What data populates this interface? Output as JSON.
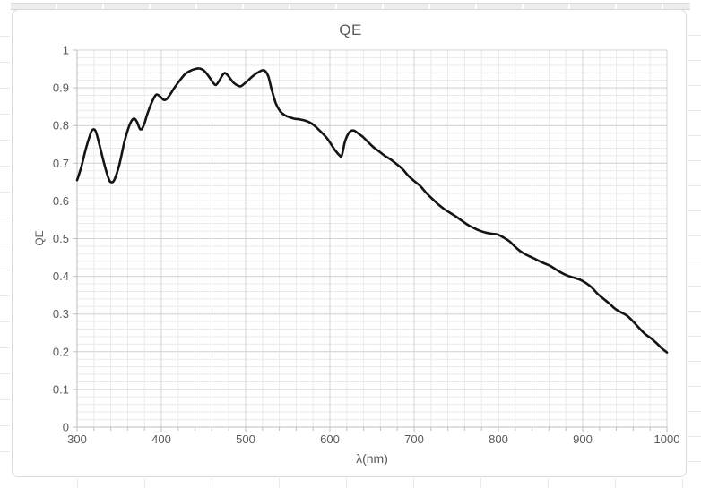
{
  "colors": {
    "text": "#595959",
    "major_grid": "#d4d4d4",
    "minor_grid": "#eaeaea",
    "axis": "#bfbfbf",
    "curve": "#141414",
    "frame_border": "#d9d9d9",
    "background": "#ffffff"
  },
  "chart_data": {
    "type": "line",
    "title": "QE",
    "xlabel": "λ(nm)",
    "ylabel": "QE",
    "xlim": [
      300,
      1000
    ],
    "ylim": [
      0,
      1
    ],
    "x_tick_values": [
      300,
      400,
      500,
      600,
      700,
      800,
      900,
      1000
    ],
    "x_tick_labels": [
      "300",
      "400",
      "500",
      "600",
      "700",
      "800",
      "900",
      "1000"
    ],
    "y_tick_values": [
      0,
      0.1,
      0.2,
      0.3,
      0.4,
      0.5,
      0.6,
      0.7,
      0.8,
      0.9,
      1
    ],
    "y_tick_labels": [
      "0",
      "0.1",
      "0.2",
      "0.3",
      "0.4",
      "0.5",
      "0.6",
      "0.7",
      "0.8",
      "0.9",
      "1"
    ],
    "x_minor_step": 20,
    "y_minor_step": 0.02,
    "grid": "major+minor",
    "legend": "none",
    "series": [
      {
        "name": "QE",
        "points": [
          [
            300,
            0.655
          ],
          [
            305,
            0.69
          ],
          [
            310,
            0.735
          ],
          [
            315,
            0.772
          ],
          [
            318,
            0.788
          ],
          [
            322,
            0.785
          ],
          [
            327,
            0.745
          ],
          [
            332,
            0.7
          ],
          [
            337,
            0.662
          ],
          [
            340,
            0.65
          ],
          [
            344,
            0.655
          ],
          [
            350,
            0.695
          ],
          [
            356,
            0.755
          ],
          [
            362,
            0.8
          ],
          [
            367,
            0.818
          ],
          [
            371,
            0.81
          ],
          [
            375,
            0.79
          ],
          [
            379,
            0.8
          ],
          [
            384,
            0.835
          ],
          [
            390,
            0.868
          ],
          [
            394,
            0.882
          ],
          [
            398,
            0.878
          ],
          [
            403,
            0.868
          ],
          [
            407,
            0.872
          ],
          [
            412,
            0.888
          ],
          [
            417,
            0.905
          ],
          [
            422,
            0.92
          ],
          [
            428,
            0.936
          ],
          [
            434,
            0.945
          ],
          [
            440,
            0.95
          ],
          [
            446,
            0.951
          ],
          [
            451,
            0.945
          ],
          [
            457,
            0.928
          ],
          [
            462,
            0.912
          ],
          [
            465,
            0.908
          ],
          [
            469,
            0.92
          ],
          [
            473,
            0.935
          ],
          [
            476,
            0.939
          ],
          [
            480,
            0.93
          ],
          [
            485,
            0.915
          ],
          [
            489,
            0.908
          ],
          [
            494,
            0.904
          ],
          [
            499,
            0.912
          ],
          [
            504,
            0.922
          ],
          [
            509,
            0.932
          ],
          [
            514,
            0.94
          ],
          [
            519,
            0.946
          ],
          [
            523,
            0.945
          ],
          [
            527,
            0.93
          ],
          [
            531,
            0.895
          ],
          [
            536,
            0.858
          ],
          [
            541,
            0.838
          ],
          [
            546,
            0.828
          ],
          [
            552,
            0.822
          ],
          [
            558,
            0.818
          ],
          [
            565,
            0.816
          ],
          [
            572,
            0.812
          ],
          [
            578,
            0.806
          ],
          [
            584,
            0.795
          ],
          [
            590,
            0.782
          ],
          [
            596,
            0.768
          ],
          [
            601,
            0.752
          ],
          [
            606,
            0.735
          ],
          [
            611,
            0.722
          ],
          [
            614,
            0.72
          ],
          [
            618,
            0.758
          ],
          [
            623,
            0.782
          ],
          [
            628,
            0.787
          ],
          [
            633,
            0.78
          ],
          [
            639,
            0.77
          ],
          [
            645,
            0.757
          ],
          [
            652,
            0.742
          ],
          [
            658,
            0.732
          ],
          [
            665,
            0.72
          ],
          [
            672,
            0.71
          ],
          [
            679,
            0.698
          ],
          [
            686,
            0.685
          ],
          [
            693,
            0.667
          ],
          [
            700,
            0.653
          ],
          [
            707,
            0.64
          ],
          [
            714,
            0.622
          ],
          [
            721,
            0.607
          ],
          [
            728,
            0.592
          ],
          [
            736,
            0.578
          ],
          [
            743,
            0.568
          ],
          [
            750,
            0.558
          ],
          [
            757,
            0.547
          ],
          [
            764,
            0.536
          ],
          [
            771,
            0.528
          ],
          [
            778,
            0.521
          ],
          [
            785,
            0.516
          ],
          [
            792,
            0.513
          ],
          [
            799,
            0.511
          ],
          [
            806,
            0.503
          ],
          [
            813,
            0.493
          ],
          [
            820,
            0.478
          ],
          [
            827,
            0.465
          ],
          [
            834,
            0.456
          ],
          [
            841,
            0.449
          ],
          [
            848,
            0.441
          ],
          [
            855,
            0.434
          ],
          [
            862,
            0.427
          ],
          [
            869,
            0.417
          ],
          [
            876,
            0.408
          ],
          [
            883,
            0.401
          ],
          [
            890,
            0.396
          ],
          [
            897,
            0.391
          ],
          [
            904,
            0.382
          ],
          [
            911,
            0.37
          ],
          [
            918,
            0.353
          ],
          [
            925,
            0.34
          ],
          [
            932,
            0.327
          ],
          [
            939,
            0.313
          ],
          [
            946,
            0.304
          ],
          [
            953,
            0.295
          ],
          [
            960,
            0.28
          ],
          [
            967,
            0.263
          ],
          [
            974,
            0.247
          ],
          [
            981,
            0.236
          ],
          [
            988,
            0.222
          ],
          [
            995,
            0.207
          ],
          [
            1000,
            0.198
          ]
        ]
      }
    ]
  }
}
